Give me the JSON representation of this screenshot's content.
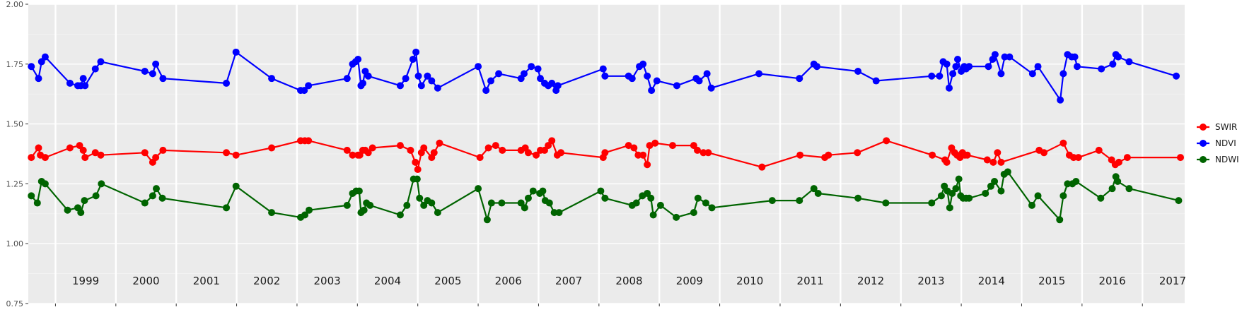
{
  "chart_data": {
    "type": "line",
    "title": "",
    "xlabel": "",
    "ylabel": "",
    "xlim": [
      1998.55,
      2017.7
    ],
    "ylim": [
      0.75,
      2.0
    ],
    "yticks": [
      "0.75",
      "1.00",
      "1.25",
      "1.50",
      "1.75",
      "2.00"
    ],
    "year_labels": [
      "1999",
      "2000",
      "2001",
      "2002",
      "2003",
      "2004",
      "2005",
      "2006",
      "2007",
      "2008",
      "2009",
      "2010",
      "2011",
      "2012",
      "2013",
      "2014",
      "2015",
      "2016",
      "2017"
    ],
    "grid": true,
    "legend_position": "right",
    "series": [
      {
        "name": "SWIR",
        "color": "#ff0000",
        "points": [
          [
            1998.6,
            1.36
          ],
          [
            1998.72,
            1.4
          ],
          [
            1998.75,
            1.37
          ],
          [
            1998.83,
            1.36
          ],
          [
            1999.24,
            1.4
          ],
          [
            1999.4,
            1.41
          ],
          [
            1999.46,
            1.39
          ],
          [
            1999.49,
            1.36
          ],
          [
            1999.66,
            1.38
          ],
          [
            1999.75,
            1.37
          ],
          [
            2000.48,
            1.38
          ],
          [
            2000.61,
            1.34
          ],
          [
            2000.66,
            1.36
          ],
          [
            2000.78,
            1.39
          ],
          [
            2001.83,
            1.38
          ],
          [
            2001.99,
            1.37
          ],
          [
            2002.58,
            1.4
          ],
          [
            2003.06,
            1.43
          ],
          [
            2003.13,
            1.43
          ],
          [
            2003.19,
            1.43
          ],
          [
            2003.83,
            1.39
          ],
          [
            2003.92,
            1.37
          ],
          [
            2004.01,
            1.37
          ],
          [
            2004.04,
            1.37
          ],
          [
            2004.09,
            1.39
          ],
          [
            2004.13,
            1.39
          ],
          [
            2004.18,
            1.38
          ],
          [
            2004.25,
            1.4
          ],
          [
            2004.71,
            1.41
          ],
          [
            2004.88,
            1.39
          ],
          [
            2004.96,
            1.34
          ],
          [
            2005.0,
            1.31
          ],
          [
            2005.06,
            1.38
          ],
          [
            2005.1,
            1.4
          ],
          [
            2005.23,
            1.36
          ],
          [
            2005.27,
            1.38
          ],
          [
            2005.36,
            1.42
          ],
          [
            2006.03,
            1.36
          ],
          [
            2006.17,
            1.4
          ],
          [
            2006.29,
            1.41
          ],
          [
            2006.4,
            1.39
          ],
          [
            2006.71,
            1.39
          ],
          [
            2006.78,
            1.4
          ],
          [
            2006.83,
            1.38
          ],
          [
            2006.96,
            1.37
          ],
          [
            2007.03,
            1.39
          ],
          [
            2007.1,
            1.39
          ],
          [
            2007.16,
            1.41
          ],
          [
            2007.22,
            1.43
          ],
          [
            2007.31,
            1.37
          ],
          [
            2007.37,
            1.38
          ],
          [
            2008.07,
            1.36
          ],
          [
            2008.1,
            1.38
          ],
          [
            2008.49,
            1.41
          ],
          [
            2008.58,
            1.4
          ],
          [
            2008.65,
            1.37
          ],
          [
            2008.73,
            1.37
          ],
          [
            2008.8,
            1.33
          ],
          [
            2008.84,
            1.41
          ],
          [
            2008.93,
            1.42
          ],
          [
            2009.22,
            1.41
          ],
          [
            2009.57,
            1.41
          ],
          [
            2009.63,
            1.39
          ],
          [
            2009.73,
            1.38
          ],
          [
            2009.81,
            1.38
          ],
          [
            2010.7,
            1.32
          ],
          [
            2011.33,
            1.37
          ],
          [
            2011.74,
            1.36
          ],
          [
            2011.8,
            1.37
          ],
          [
            2012.28,
            1.38
          ],
          [
            2012.76,
            1.43
          ],
          [
            2013.52,
            1.37
          ],
          [
            2013.73,
            1.35
          ],
          [
            2013.76,
            1.34
          ],
          [
            2013.84,
            1.4
          ],
          [
            2013.89,
            1.38
          ],
          [
            2013.93,
            1.37
          ],
          [
            2013.98,
            1.36
          ],
          [
            2014.02,
            1.38
          ],
          [
            2014.06,
            1.37
          ],
          [
            2014.1,
            1.37
          ],
          [
            2014.43,
            1.35
          ],
          [
            2014.53,
            1.34
          ],
          [
            2014.6,
            1.38
          ],
          [
            2014.66,
            1.34
          ],
          [
            2015.29,
            1.39
          ],
          [
            2015.37,
            1.38
          ],
          [
            2015.69,
            1.42
          ],
          [
            2015.79,
            1.37
          ],
          [
            2015.86,
            1.36
          ],
          [
            2015.94,
            1.36
          ],
          [
            2016.28,
            1.39
          ],
          [
            2016.49,
            1.35
          ],
          [
            2016.55,
            1.33
          ],
          [
            2016.61,
            1.34
          ],
          [
            2016.75,
            1.36
          ],
          [
            2017.63,
            1.36
          ]
        ]
      },
      {
        "name": "NDVI",
        "color": "#0000ff",
        "points": [
          [
            1998.6,
            1.74
          ],
          [
            1998.72,
            1.69
          ],
          [
            1998.77,
            1.76
          ],
          [
            1998.83,
            1.78
          ],
          [
            1999.24,
            1.67
          ],
          [
            1999.37,
            1.66
          ],
          [
            1999.42,
            1.66
          ],
          [
            1999.46,
            1.69
          ],
          [
            1999.49,
            1.66
          ],
          [
            1999.66,
            1.73
          ],
          [
            1999.75,
            1.76
          ],
          [
            2000.48,
            1.72
          ],
          [
            2000.61,
            1.71
          ],
          [
            2000.66,
            1.75
          ],
          [
            2000.78,
            1.69
          ],
          [
            2001.83,
            1.67
          ],
          [
            2001.99,
            1.8
          ],
          [
            2002.58,
            1.69
          ],
          [
            2003.06,
            1.64
          ],
          [
            2003.12,
            1.64
          ],
          [
            2003.19,
            1.66
          ],
          [
            2003.83,
            1.69
          ],
          [
            2003.92,
            1.75
          ],
          [
            2003.97,
            1.76
          ],
          [
            2004.01,
            1.77
          ],
          [
            2004.06,
            1.66
          ],
          [
            2004.09,
            1.67
          ],
          [
            2004.13,
            1.72
          ],
          [
            2004.18,
            1.7
          ],
          [
            2004.71,
            1.66
          ],
          [
            2004.8,
            1.69
          ],
          [
            2004.92,
            1.77
          ],
          [
            2004.97,
            1.8
          ],
          [
            2005.01,
            1.7
          ],
          [
            2005.06,
            1.66
          ],
          [
            2005.16,
            1.7
          ],
          [
            2005.23,
            1.68
          ],
          [
            2005.33,
            1.65
          ],
          [
            2006.0,
            1.74
          ],
          [
            2006.13,
            1.64
          ],
          [
            2006.21,
            1.68
          ],
          [
            2006.34,
            1.71
          ],
          [
            2006.71,
            1.69
          ],
          [
            2006.76,
            1.71
          ],
          [
            2006.88,
            1.74
          ],
          [
            2006.99,
            1.73
          ],
          [
            2007.03,
            1.69
          ],
          [
            2007.1,
            1.67
          ],
          [
            2007.16,
            1.66
          ],
          [
            2007.22,
            1.67
          ],
          [
            2007.29,
            1.64
          ],
          [
            2007.32,
            1.66
          ],
          [
            2008.07,
            1.73
          ],
          [
            2008.1,
            1.7
          ],
          [
            2008.49,
            1.7
          ],
          [
            2008.55,
            1.69
          ],
          [
            2008.67,
            1.74
          ],
          [
            2008.73,
            1.75
          ],
          [
            2008.8,
            1.7
          ],
          [
            2008.87,
            1.64
          ],
          [
            2008.96,
            1.68
          ],
          [
            2009.29,
            1.66
          ],
          [
            2009.61,
            1.69
          ],
          [
            2009.66,
            1.68
          ],
          [
            2009.79,
            1.71
          ],
          [
            2009.86,
            1.65
          ],
          [
            2010.65,
            1.71
          ],
          [
            2011.32,
            1.69
          ],
          [
            2011.56,
            1.75
          ],
          [
            2011.61,
            1.74
          ],
          [
            2012.29,
            1.72
          ],
          [
            2012.59,
            1.68
          ],
          [
            2013.51,
            1.7
          ],
          [
            2013.64,
            1.7
          ],
          [
            2013.7,
            1.76
          ],
          [
            2013.76,
            1.75
          ],
          [
            2013.8,
            1.65
          ],
          [
            2013.86,
            1.71
          ],
          [
            2013.91,
            1.74
          ],
          [
            2013.94,
            1.77
          ],
          [
            2014.0,
            1.72
          ],
          [
            2014.05,
            1.74
          ],
          [
            2014.08,
            1.73
          ],
          [
            2014.13,
            1.74
          ],
          [
            2014.45,
            1.74
          ],
          [
            2014.52,
            1.77
          ],
          [
            2014.56,
            1.79
          ],
          [
            2014.66,
            1.71
          ],
          [
            2014.72,
            1.78
          ],
          [
            2014.8,
            1.78
          ],
          [
            2015.18,
            1.71
          ],
          [
            2015.27,
            1.74
          ],
          [
            2015.64,
            1.6
          ],
          [
            2015.69,
            1.71
          ],
          [
            2015.76,
            1.79
          ],
          [
            2015.83,
            1.78
          ],
          [
            2015.88,
            1.78
          ],
          [
            2015.92,
            1.74
          ],
          [
            2016.32,
            1.73
          ],
          [
            2016.51,
            1.75
          ],
          [
            2016.56,
            1.79
          ],
          [
            2016.6,
            1.78
          ],
          [
            2016.78,
            1.76
          ],
          [
            2017.56,
            1.7
          ]
        ]
      },
      {
        "name": "NDWI",
        "color": "#006400",
        "points": [
          [
            1998.6,
            1.2
          ],
          [
            1998.7,
            1.17
          ],
          [
            1998.77,
            1.26
          ],
          [
            1998.83,
            1.25
          ],
          [
            1999.2,
            1.14
          ],
          [
            1999.37,
            1.15
          ],
          [
            1999.42,
            1.13
          ],
          [
            1999.48,
            1.18
          ],
          [
            1999.67,
            1.2
          ],
          [
            1999.76,
            1.25
          ],
          [
            2000.48,
            1.17
          ],
          [
            2000.61,
            1.2
          ],
          [
            2000.67,
            1.23
          ],
          [
            2000.77,
            1.19
          ],
          [
            2001.83,
            1.15
          ],
          [
            2001.99,
            1.24
          ],
          [
            2002.58,
            1.13
          ],
          [
            2003.06,
            1.11
          ],
          [
            2003.13,
            1.12
          ],
          [
            2003.2,
            1.14
          ],
          [
            2003.83,
            1.16
          ],
          [
            2003.92,
            1.21
          ],
          [
            2003.98,
            1.22
          ],
          [
            2004.03,
            1.22
          ],
          [
            2004.06,
            1.13
          ],
          [
            2004.11,
            1.14
          ],
          [
            2004.15,
            1.17
          ],
          [
            2004.21,
            1.16
          ],
          [
            2004.71,
            1.12
          ],
          [
            2004.82,
            1.16
          ],
          [
            2004.93,
            1.27
          ],
          [
            2004.99,
            1.27
          ],
          [
            2005.03,
            1.19
          ],
          [
            2005.1,
            1.16
          ],
          [
            2005.16,
            1.18
          ],
          [
            2005.23,
            1.17
          ],
          [
            2005.33,
            1.13
          ],
          [
            2006.0,
            1.23
          ],
          [
            2006.15,
            1.1
          ],
          [
            2006.22,
            1.17
          ],
          [
            2006.39,
            1.17
          ],
          [
            2006.71,
            1.17
          ],
          [
            2006.77,
            1.15
          ],
          [
            2006.83,
            1.19
          ],
          [
            2006.91,
            1.22
          ],
          [
            2007.02,
            1.21
          ],
          [
            2007.07,
            1.22
          ],
          [
            2007.11,
            1.18
          ],
          [
            2007.18,
            1.17
          ],
          [
            2007.26,
            1.13
          ],
          [
            2007.34,
            1.13
          ],
          [
            2008.03,
            1.22
          ],
          [
            2008.1,
            1.19
          ],
          [
            2008.55,
            1.16
          ],
          [
            2008.62,
            1.17
          ],
          [
            2008.72,
            1.2
          ],
          [
            2008.8,
            1.21
          ],
          [
            2008.86,
            1.19
          ],
          [
            2008.9,
            1.12
          ],
          [
            2009.02,
            1.16
          ],
          [
            2009.28,
            1.11
          ],
          [
            2009.57,
            1.13
          ],
          [
            2009.64,
            1.19
          ],
          [
            2009.77,
            1.17
          ],
          [
            2009.87,
            1.15
          ],
          [
            2010.87,
            1.18
          ],
          [
            2011.32,
            1.18
          ],
          [
            2011.56,
            1.23
          ],
          [
            2011.63,
            1.21
          ],
          [
            2012.29,
            1.19
          ],
          [
            2012.75,
            1.17
          ],
          [
            2013.51,
            1.17
          ],
          [
            2013.67,
            1.2
          ],
          [
            2013.72,
            1.24
          ],
          [
            2013.77,
            1.22
          ],
          [
            2013.81,
            1.15
          ],
          [
            2013.85,
            1.21
          ],
          [
            2013.91,
            1.23
          ],
          [
            2013.96,
            1.27
          ],
          [
            2013.99,
            1.2
          ],
          [
            2014.03,
            1.19
          ],
          [
            2014.08,
            1.19
          ],
          [
            2014.13,
            1.19
          ],
          [
            2014.4,
            1.21
          ],
          [
            2014.49,
            1.24
          ],
          [
            2014.55,
            1.26
          ],
          [
            2014.66,
            1.22
          ],
          [
            2014.71,
            1.29
          ],
          [
            2014.77,
            1.3
          ],
          [
            2015.17,
            1.16
          ],
          [
            2015.27,
            1.2
          ],
          [
            2015.63,
            1.1
          ],
          [
            2015.69,
            1.2
          ],
          [
            2015.76,
            1.25
          ],
          [
            2015.84,
            1.25
          ],
          [
            2015.9,
            1.26
          ],
          [
            2016.31,
            1.19
          ],
          [
            2016.5,
            1.23
          ],
          [
            2016.56,
            1.28
          ],
          [
            2016.59,
            1.26
          ],
          [
            2016.78,
            1.23
          ],
          [
            2017.6,
            1.18
          ]
        ]
      }
    ]
  }
}
